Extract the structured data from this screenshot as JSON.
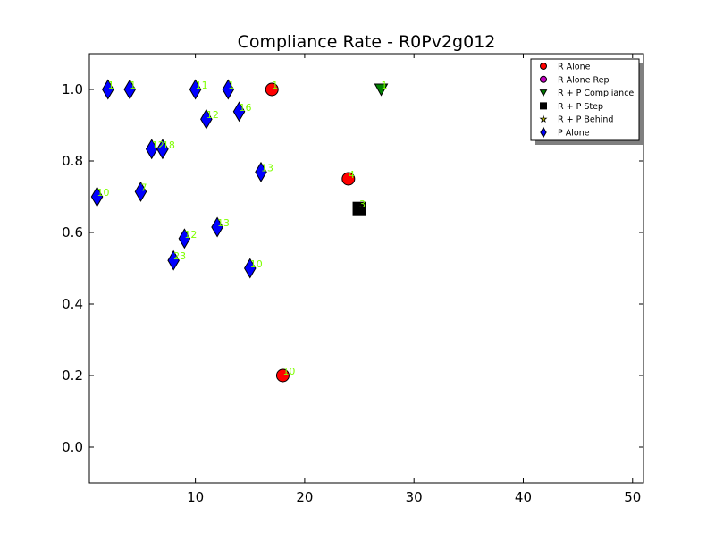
{
  "chart_data": {
    "type": "scatter",
    "title": "Compliance Rate  - R0Pv2g012",
    "xlabel": "",
    "ylabel": "",
    "xlim": [
      0.3,
      51
    ],
    "ylim": [
      -0.1,
      1.1
    ],
    "xticks": [
      10,
      20,
      30,
      40,
      50
    ],
    "yticks": [
      0.0,
      0.2,
      0.4,
      0.6,
      0.8,
      1.0
    ],
    "xtick_labels": [
      "10",
      "20",
      "30",
      "40",
      "50"
    ],
    "ytick_labels": [
      "0.0",
      "0.2",
      "0.4",
      "0.6",
      "0.8",
      "1.0"
    ],
    "grid": false,
    "legend_position": "top-right",
    "point_label_color": "#7fff00",
    "series": [
      {
        "name": "R Alone",
        "marker": "circle",
        "color": "#ff0000",
        "points": [
          {
            "x": 17,
            "y": 1.0,
            "label": "1"
          },
          {
            "x": 24,
            "y": 0.75,
            "label": "4"
          },
          {
            "x": 18,
            "y": 0.2,
            "label": "10"
          }
        ]
      },
      {
        "name": "R Alone Rep",
        "marker": "circle",
        "color": "#bf00bf",
        "points": []
      },
      {
        "name": "R + P Compliance",
        "marker": "triangle-down",
        "color": "#008000",
        "points": [
          {
            "x": 27,
            "y": 1.0,
            "label": "1"
          }
        ]
      },
      {
        "name": "R + P Step",
        "marker": "square",
        "color": "#000000",
        "points": [
          {
            "x": 25,
            "y": 0.667,
            "label": "3"
          }
        ]
      },
      {
        "name": "R + P Behind",
        "marker": "star",
        "color": "#bfbf00",
        "points": []
      },
      {
        "name": "P Alone",
        "marker": "thin-diamond",
        "color": "#0000ff",
        "points": [
          {
            "x": 2,
            "y": 1.0,
            "label": "1"
          },
          {
            "x": 4,
            "y": 1.0,
            "label": "1"
          },
          {
            "x": 10,
            "y": 1.0,
            "label": "11"
          },
          {
            "x": 13,
            "y": 1.0,
            "label": "1"
          },
          {
            "x": 11,
            "y": 0.917,
            "label": "12"
          },
          {
            "x": 14,
            "y": 0.938,
            "label": "16"
          },
          {
            "x": 6,
            "y": 0.833,
            "label": "12"
          },
          {
            "x": 7,
            "y": 0.833,
            "label": "18"
          },
          {
            "x": 16,
            "y": 0.769,
            "label": "13"
          },
          {
            "x": 1,
            "y": 0.7,
            "label": "10"
          },
          {
            "x": 5,
            "y": 0.714,
            "label": "7"
          },
          {
            "x": 12,
            "y": 0.615,
            "label": "13"
          },
          {
            "x": 9,
            "y": 0.583,
            "label": "12"
          },
          {
            "x": 8,
            "y": 0.522,
            "label": "23"
          },
          {
            "x": 15,
            "y": 0.5,
            "label": "10"
          }
        ]
      }
    ]
  }
}
